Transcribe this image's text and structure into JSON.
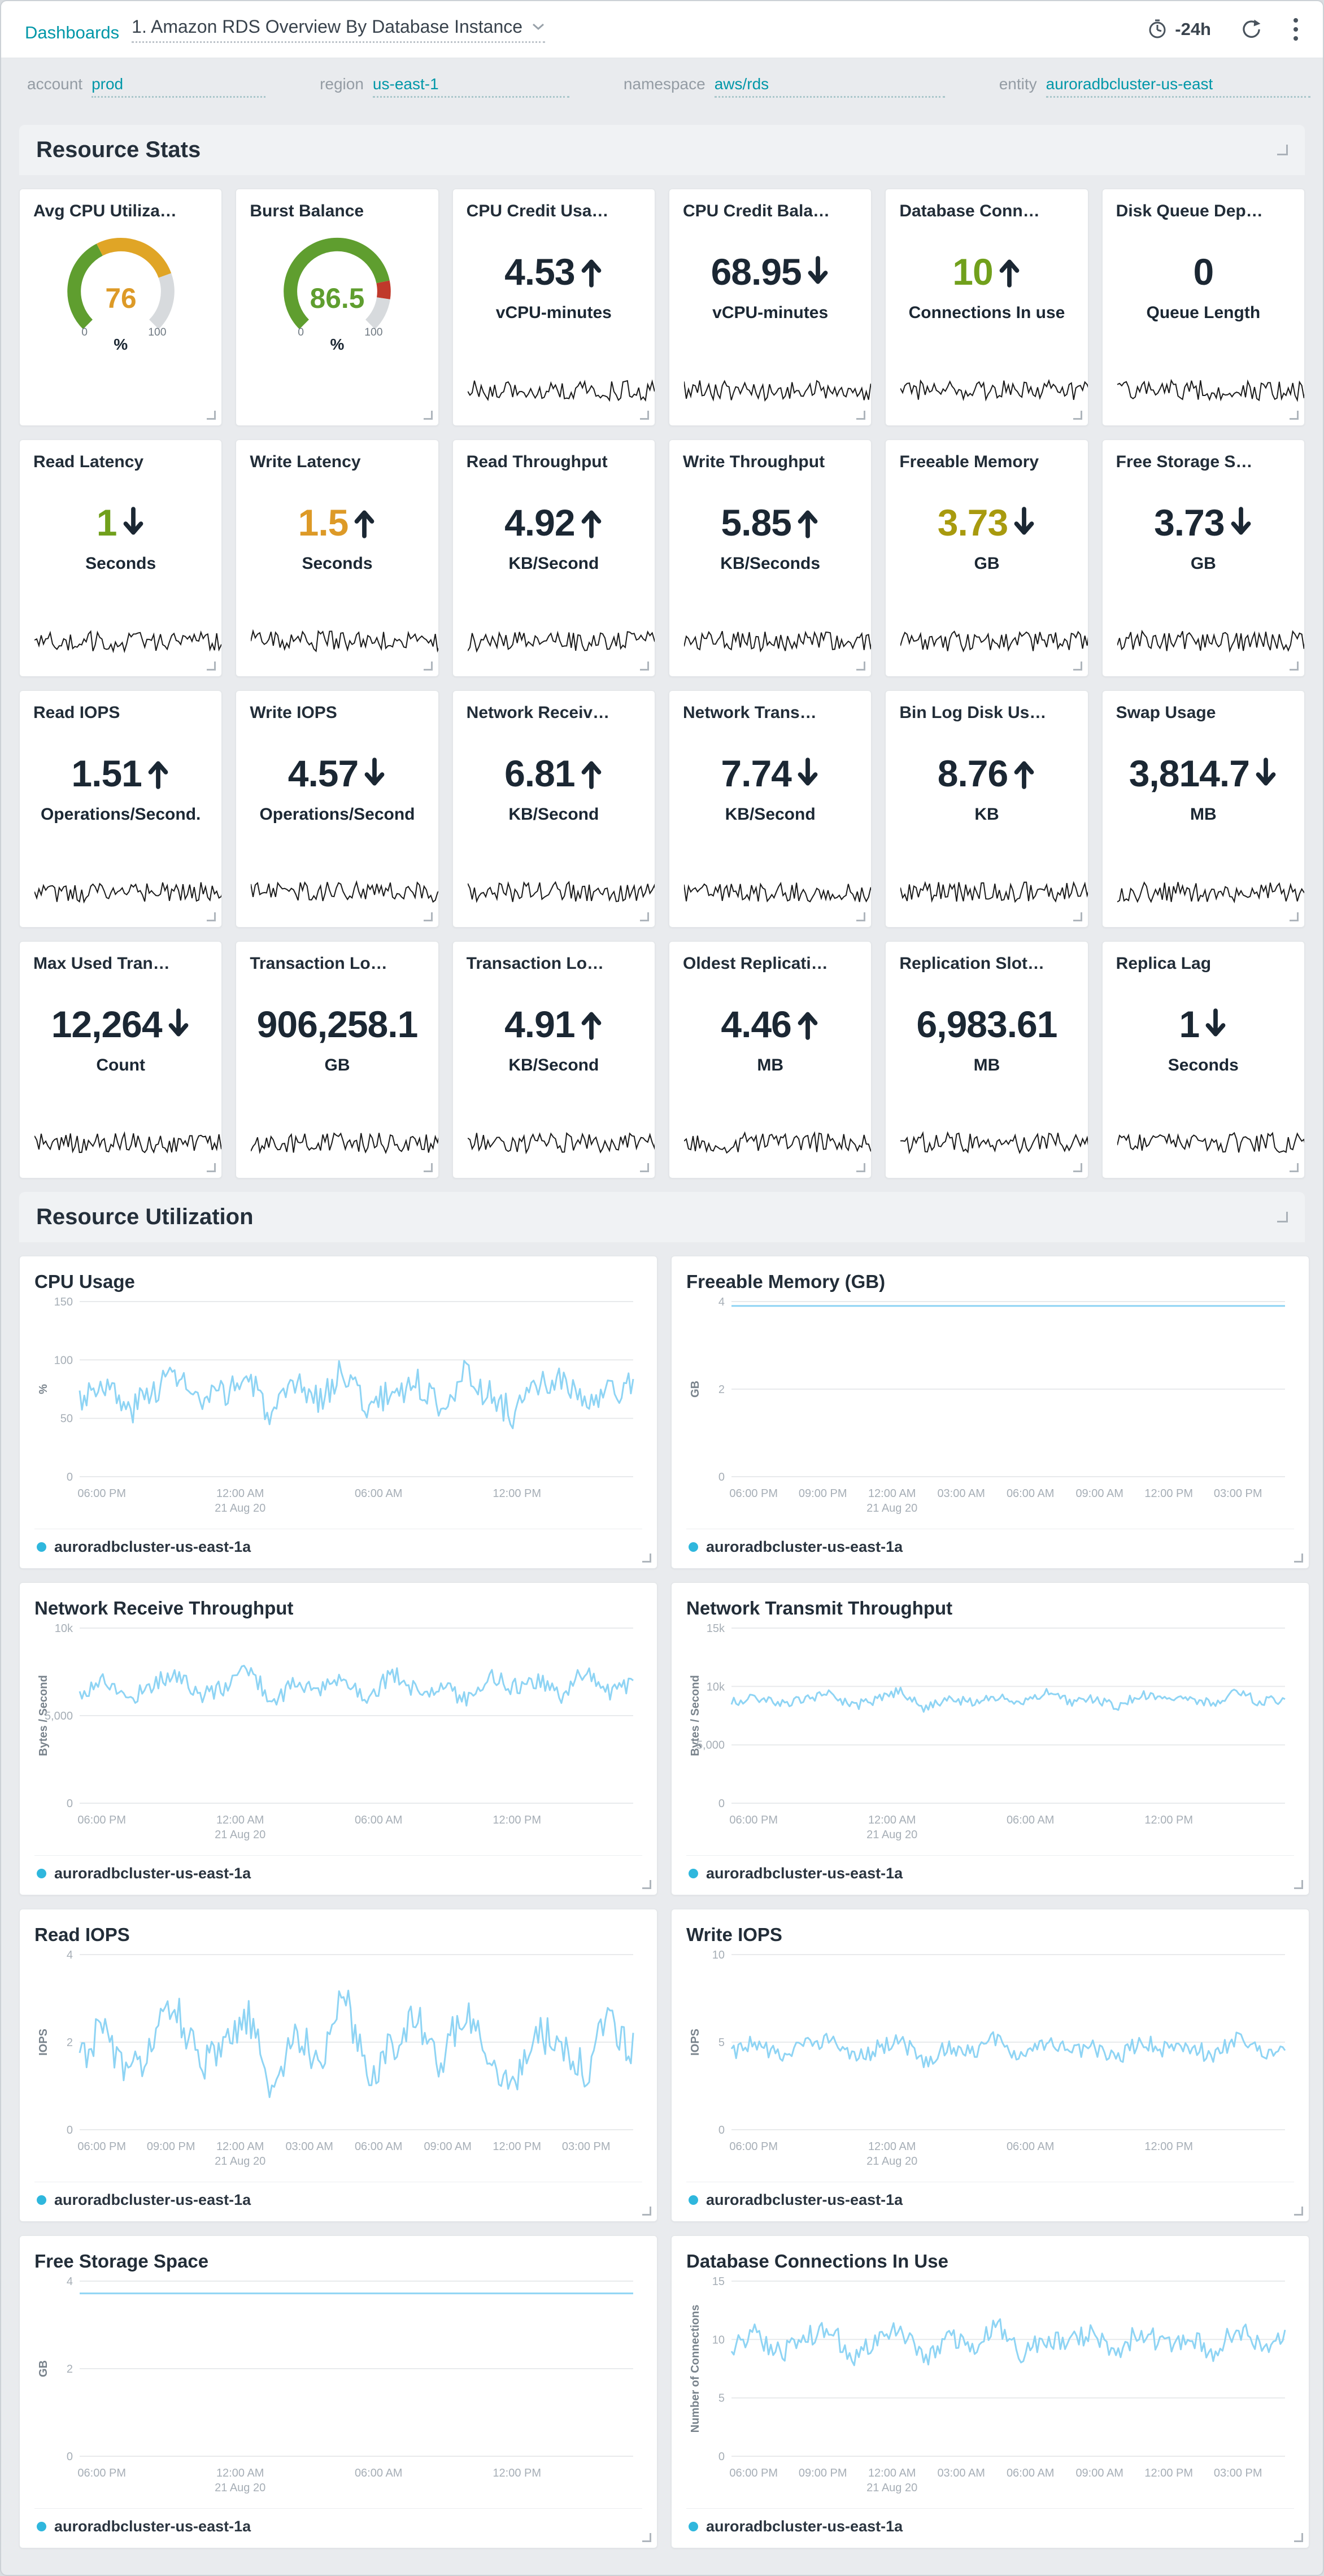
{
  "header": {
    "breadcrumb": "Dashboards",
    "title": "1. Amazon RDS Overview By Database Instance",
    "time_range": "-24h"
  },
  "filters": [
    {
      "label": "account",
      "value": "prod"
    },
    {
      "label": "region",
      "value": "us-east-1"
    },
    {
      "label": "namespace",
      "value": "aws/rds"
    },
    {
      "label": "entity",
      "value": "auroradbcluster-us-east"
    }
  ],
  "sections": {
    "stats": "Resource Stats",
    "utilization": "Resource Utilization"
  },
  "colors": {
    "accent_teal": "#0097a8",
    "value_dark": "#1b2733",
    "value_green": "#71a01c",
    "value_orange": "#dd9a27",
    "value_olive": "#a89a0e",
    "gauge_green": "#5f9e2f",
    "gauge_orange": "#e0a526",
    "gauge_red": "#c0392b",
    "gauge_track": "#d7dadd",
    "spark_line": "#1a1a1a",
    "chart_line": "#8ed4f4",
    "legend_dot": "#2fb7dd"
  },
  "legend_label": "auroradbcluster-us-east-1a",
  "stats": [
    {
      "title": "Avg CPU Utiliza…",
      "type": "gauge",
      "value": "76",
      "unit": "%",
      "min": "0",
      "max": "100",
      "value_color": "#dd9a27",
      "segments": [
        {
          "from": 0,
          "to": 40,
          "color": "#5f9e2f"
        },
        {
          "from": 40,
          "to": 76,
          "color": "#e0a526"
        },
        {
          "from": 76,
          "to": 100,
          "color": "#d7dadd"
        }
      ]
    },
    {
      "title": "Burst Balance",
      "type": "gauge",
      "value": "86.5",
      "unit": "%",
      "min": "0",
      "max": "100",
      "value_color": "#5f9e2f",
      "segments": [
        {
          "from": 0,
          "to": 79,
          "color": "#5f9e2f"
        },
        {
          "from": 79,
          "to": 86.5,
          "color": "#c0392b"
        },
        {
          "from": 86.5,
          "to": 100,
          "color": "#d7dadd"
        }
      ]
    },
    {
      "title": "CPU Credit Usa…",
      "type": "number",
      "value": "4.53",
      "arrow": "up",
      "unit": "vCPU-minutes",
      "value_color": "#1b2733"
    },
    {
      "title": "CPU Credit Bala…",
      "type": "number",
      "value": "68.95",
      "arrow": "down",
      "unit": "vCPU-minutes",
      "value_color": "#1b2733"
    },
    {
      "title": "Database Conn…",
      "type": "number",
      "value": "10",
      "arrow": "up",
      "unit": "Connections In use",
      "value_color": "#71a01c"
    },
    {
      "title": "Disk Queue Dep…",
      "type": "number",
      "value": "0",
      "arrow": null,
      "unit": "Queue Length",
      "value_color": "#1b2733"
    },
    {
      "title": "Read Latency",
      "type": "number",
      "value": "1",
      "arrow": "down",
      "unit": "Seconds",
      "value_color": "#71a01c"
    },
    {
      "title": "Write Latency",
      "type": "number",
      "value": "1.5",
      "arrow": "up",
      "unit": "Seconds",
      "value_color": "#dd9a27"
    },
    {
      "title": "Read Throughput",
      "type": "number",
      "value": "4.92",
      "arrow": "up",
      "unit": "KB/Second",
      "value_color": "#1b2733"
    },
    {
      "title": "Write Throughput",
      "type": "number",
      "value": "5.85",
      "arrow": "up",
      "unit": "KB/Seconds",
      "value_color": "#1b2733"
    },
    {
      "title": "Freeable Memory",
      "type": "number",
      "value": "3.73",
      "arrow": "down",
      "unit": "GB",
      "value_color": "#a89a0e"
    },
    {
      "title": "Free Storage S…",
      "type": "number",
      "value": "3.73",
      "arrow": "down",
      "unit": "GB",
      "value_color": "#1b2733"
    },
    {
      "title": "Read IOPS",
      "type": "number",
      "value": "1.51",
      "arrow": "up",
      "unit": "Operations/Second.",
      "value_color": "#1b2733"
    },
    {
      "title": "Write IOPS",
      "type": "number",
      "value": "4.57",
      "arrow": "down",
      "unit": "Operations/Second",
      "value_color": "#1b2733"
    },
    {
      "title": "Network Receiv…",
      "type": "number",
      "value": "6.81",
      "arrow": "up",
      "unit": "KB/Second",
      "value_color": "#1b2733"
    },
    {
      "title": "Network Trans…",
      "type": "number",
      "value": "7.74",
      "arrow": "down",
      "unit": "KB/Second",
      "value_color": "#1b2733"
    },
    {
      "title": "Bin Log Disk Us…",
      "type": "number",
      "value": "8.76",
      "arrow": "up",
      "unit": "KB",
      "value_color": "#1b2733"
    },
    {
      "title": "Swap Usage",
      "type": "number",
      "value": "3,814.7",
      "arrow": "down",
      "unit": "MB",
      "value_color": "#1b2733"
    },
    {
      "title": "Max Used Tran…",
      "type": "number",
      "value": "12,264",
      "arrow": "down",
      "unit": "Count",
      "value_color": "#1b2733"
    },
    {
      "title": "Transaction Lo…",
      "type": "number",
      "value": "906,258.1",
      "arrow": null,
      "unit": "GB",
      "value_color": "#1b2733"
    },
    {
      "title": "Transaction Lo…",
      "type": "number",
      "value": "4.91",
      "arrow": "up",
      "unit": "KB/Second",
      "value_color": "#1b2733"
    },
    {
      "title": "Oldest Replicati…",
      "type": "number",
      "value": "4.46",
      "arrow": "up",
      "unit": "MB",
      "value_color": "#1b2733"
    },
    {
      "title": "Replication Slot…",
      "type": "number",
      "value": "6,983.61",
      "arrow": null,
      "unit": "MB",
      "value_color": "#1b2733"
    },
    {
      "title": "Replica Lag",
      "type": "number",
      "value": "1",
      "arrow": "down",
      "unit": "Seconds",
      "value_color": "#1b2733"
    }
  ],
  "chart_data": [
    {
      "type": "line",
      "title": "CPU Usage",
      "ylabel": "%",
      "ymin": 0,
      "ymax": 150,
      "yticks": [
        {
          "v": 0,
          "label": "0"
        },
        {
          "v": 50,
          "label": "50"
        },
        {
          "v": 100,
          "label": "100"
        },
        {
          "v": 150,
          "label": "150"
        }
      ],
      "xticks": [
        {
          "label": "06:00 PM"
        },
        {
          "label": "12:00 AM",
          "sub": "21 Aug 20"
        },
        {
          "label": "06:00 AM"
        },
        {
          "label": "12:00 PM"
        }
      ],
      "series": [
        {
          "name": "auroradbcluster-us-east-1a",
          "color": "#8ed4f4",
          "jitter": 13,
          "values": [
            68,
            82,
            55,
            74,
            90,
            60,
            72,
            85,
            50,
            78,
            66,
            92,
            58,
            73,
            80,
            62,
            88,
            70,
            54,
            76,
            84,
            60,
            72,
            78
          ]
        }
      ]
    },
    {
      "type": "line",
      "title": "Freeable Memory (GB)",
      "ylabel": "GB",
      "ymin": 0,
      "ymax": 4,
      "yticks": [
        {
          "v": 0,
          "label": "0"
        },
        {
          "v": 2,
          "label": "2"
        },
        {
          "v": 4,
          "label": "4"
        }
      ],
      "xticks": [
        {
          "label": "06:00 PM"
        },
        {
          "label": "09:00 PM"
        },
        {
          "label": "12:00 AM",
          "sub": "21 Aug 20"
        },
        {
          "label": "03:00 AM"
        },
        {
          "label": "06:00 AM"
        },
        {
          "label": "09:00 AM"
        },
        {
          "label": "12:00 PM"
        },
        {
          "label": "03:00 PM"
        }
      ],
      "series": [
        {
          "name": "auroradbcluster-us-east-1a",
          "color": "#8ed4f4",
          "jitter": 0,
          "values": [
            3.9,
            3.9,
            3.9,
            3.9
          ]
        }
      ]
    },
    {
      "type": "line",
      "title": "Network Receive Throughput",
      "ylabel": "Bytes / Second",
      "ymin": 0,
      "ymax": 10000,
      "yticks": [
        {
          "v": 0,
          "label": "0"
        },
        {
          "v": 5000,
          "label": "5,000"
        },
        {
          "v": 10000,
          "label": "10k"
        }
      ],
      "xticks": [
        {
          "label": "06:00 PM"
        },
        {
          "label": "12:00 AM",
          "sub": "21 Aug 20"
        },
        {
          "label": "06:00 AM"
        },
        {
          "label": "12:00 PM"
        }
      ],
      "series": [
        {
          "name": "auroradbcluster-us-east-1a",
          "color": "#8ed4f4",
          "jitter": 520,
          "values": [
            6200,
            7100,
            5900,
            6800,
            7400,
            6100,
            6600,
            7800,
            5800,
            6900,
            6400,
            7200,
            6000,
            7500,
            6300,
            6800,
            5900,
            7300,
            6600,
            7000,
            6200,
            7600,
            6400,
            6900
          ]
        }
      ]
    },
    {
      "type": "line",
      "title": "Network Transmit Throughput",
      "ylabel": "Bytes / Second",
      "ymin": 0,
      "ymax": 15000,
      "yticks": [
        {
          "v": 0,
          "label": "0"
        },
        {
          "v": 5000,
          "label": "5,000"
        },
        {
          "v": 10000,
          "label": "10k"
        },
        {
          "v": 15000,
          "label": "15k"
        }
      ],
      "xticks": [
        {
          "label": "06:00 PM"
        },
        {
          "label": "12:00 AM",
          "sub": "21 Aug 20"
        },
        {
          "label": "06:00 AM"
        },
        {
          "label": "12:00 PM"
        }
      ],
      "series": [
        {
          "name": "auroradbcluster-us-east-1a",
          "color": "#8ed4f4",
          "jitter": 420,
          "values": [
            8600,
            9100,
            8400,
            8900,
            9400,
            8300,
            8800,
            9600,
            8200,
            9000,
            8600,
            9200,
            8400,
            9500,
            8700,
            8900,
            8300,
            9300,
            8800,
            9100,
            8500,
            9700,
            8600,
            9000
          ]
        }
      ]
    },
    {
      "type": "line",
      "title": "Read IOPS",
      "ylabel": "IOPS",
      "ymin": 0,
      "ymax": 4,
      "yticks": [
        {
          "v": 0,
          "label": "0"
        },
        {
          "v": 2,
          "label": "2"
        },
        {
          "v": 4,
          "label": "4"
        }
      ],
      "xticks": [
        {
          "label": "06:00 PM"
        },
        {
          "label": "09:00 PM"
        },
        {
          "label": "12:00 AM",
          "sub": "21 Aug 20"
        },
        {
          "label": "03:00 AM"
        },
        {
          "label": "06:00 AM"
        },
        {
          "label": "09:00 AM"
        },
        {
          "label": "12:00 PM"
        },
        {
          "label": "03:00 PM"
        }
      ],
      "series": [
        {
          "name": "auroradbcluster-us-east-1a",
          "color": "#8ed4f4",
          "jitter": 0.45,
          "values": [
            1.6,
            2.4,
            1.1,
            2.0,
            2.9,
            1.4,
            1.8,
            2.6,
            0.9,
            2.2,
            1.6,
            3.1,
            1.2,
            2.0,
            2.5,
            1.5,
            2.8,
            1.7,
            1.0,
            2.3,
            1.9,
            1.3,
            2.6,
            1.8
          ]
        }
      ]
    },
    {
      "type": "line",
      "title": "Write IOPS",
      "ylabel": "IOPS",
      "ymin": 0,
      "ymax": 10,
      "yticks": [
        {
          "v": 0,
          "label": "0"
        },
        {
          "v": 5,
          "label": "5"
        },
        {
          "v": 10,
          "label": "10"
        }
      ],
      "xticks": [
        {
          "label": "06:00 PM"
        },
        {
          "label": "12:00 AM",
          "sub": "21 Aug 20"
        },
        {
          "label": "06:00 AM"
        },
        {
          "label": "12:00 PM"
        }
      ],
      "series": [
        {
          "name": "auroradbcluster-us-east-1a",
          "color": "#8ed4f4",
          "jitter": 0.5,
          "values": [
            4.4,
            5.0,
            4.1,
            4.7,
            5.3,
            4.0,
            4.6,
            5.1,
            3.9,
            4.8,
            4.4,
            5.2,
            4.1,
            4.9,
            4.5,
            4.7,
            4.0,
            5.0,
            4.6,
            4.8,
            4.2,
            5.3,
            4.4,
            4.7
          ]
        }
      ]
    },
    {
      "type": "line",
      "title": "Free Storage Space",
      "ylabel": "GB",
      "ymin": 0,
      "ymax": 4,
      "yticks": [
        {
          "v": 0,
          "label": "0"
        },
        {
          "v": 2,
          "label": "2"
        },
        {
          "v": 4,
          "label": "4"
        }
      ],
      "xticks": [
        {
          "label": "06:00 PM"
        },
        {
          "label": "12:00 AM",
          "sub": "21 Aug 20"
        },
        {
          "label": "06:00 AM"
        },
        {
          "label": "12:00 PM"
        }
      ],
      "series": [
        {
          "name": "auroradbcluster-us-east-1a",
          "color": "#8ed4f4",
          "jitter": 0,
          "values": [
            3.72,
            3.72,
            3.72,
            3.72
          ]
        }
      ]
    },
    {
      "type": "line",
      "title": "Database Connections In Use",
      "ylabel": "Number of Connections",
      "ymin": 0,
      "ymax": 15,
      "yticks": [
        {
          "v": 0,
          "label": "0"
        },
        {
          "v": 5,
          "label": "5"
        },
        {
          "v": 10,
          "label": "10"
        },
        {
          "v": 15,
          "label": "15"
        }
      ],
      "xticks": [
        {
          "label": "06:00 PM"
        },
        {
          "label": "09:00 PM"
        },
        {
          "label": "12:00 AM",
          "sub": "21 Aug 20"
        },
        {
          "label": "03:00 AM"
        },
        {
          "label": "06:00 AM"
        },
        {
          "label": "09:00 AM"
        },
        {
          "label": "12:00 PM"
        },
        {
          "label": "03:00 PM"
        }
      ],
      "series": [
        {
          "name": "auroradbcluster-us-east-1a",
          "color": "#8ed4f4",
          "jitter": 0.9,
          "values": [
            9.5,
            10.5,
            8.8,
            10.0,
            11.2,
            8.5,
            9.8,
            11.0,
            8.2,
            10.3,
            9.4,
            11.4,
            8.7,
            10.1,
            9.7,
            10.6,
            8.9,
            10.8,
            9.5,
            10.2,
            9.0,
            11.1,
            9.3,
            10.0
          ]
        }
      ]
    }
  ]
}
